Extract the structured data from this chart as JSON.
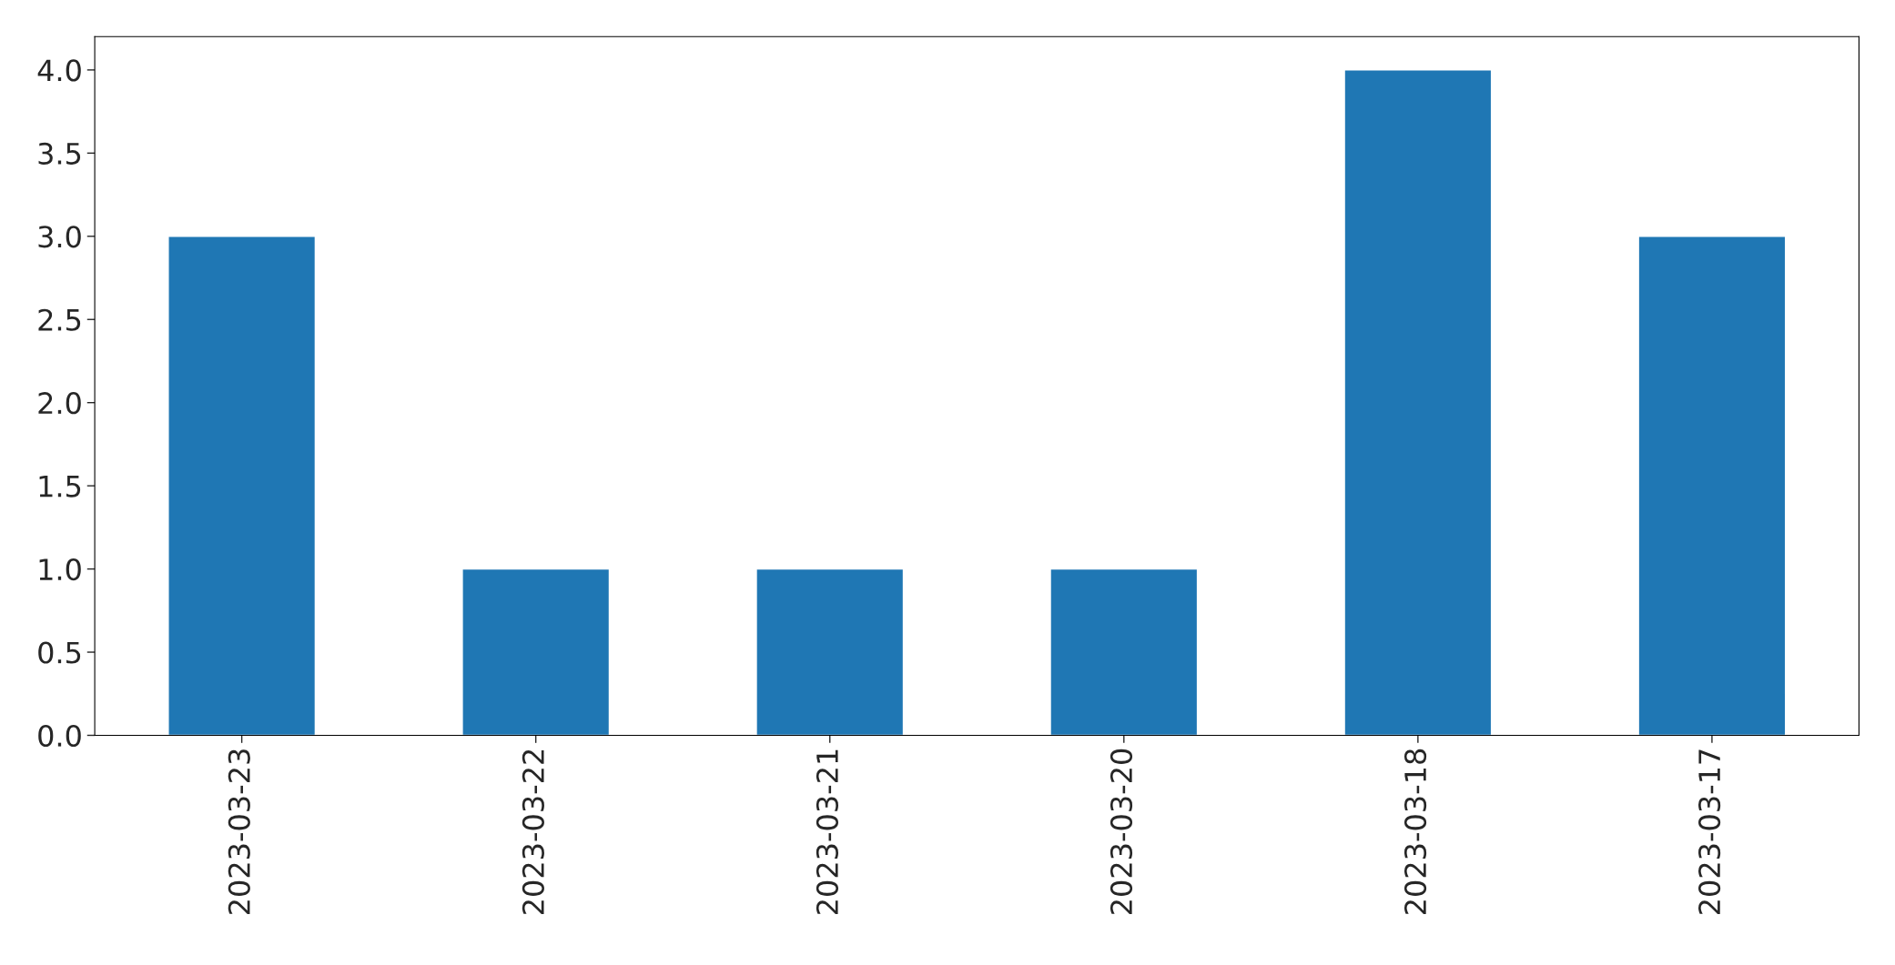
{
  "chart_data": {
    "type": "bar",
    "categories": [
      "2023-03-23",
      "2023-03-22",
      "2023-03-21",
      "2023-03-20",
      "2023-03-18",
      "2023-03-17"
    ],
    "values": [
      3,
      1,
      1,
      1,
      4,
      3
    ],
    "color": "#1f77b4",
    "ylim": [
      0,
      4.2
    ],
    "yticks": [
      {
        "value": 0,
        "label": "0.0"
      },
      {
        "value": 0.5,
        "label": "0.5"
      },
      {
        "value": 1,
        "label": "1.0"
      },
      {
        "value": 1.5,
        "label": "1.5"
      },
      {
        "value": 2,
        "label": "2.0"
      },
      {
        "value": 2.5,
        "label": "2.5"
      },
      {
        "value": 3,
        "label": "3.0"
      },
      {
        "value": 3.5,
        "label": "3.5"
      },
      {
        "value": 4,
        "label": "4.0"
      }
    ],
    "grid": false
  }
}
